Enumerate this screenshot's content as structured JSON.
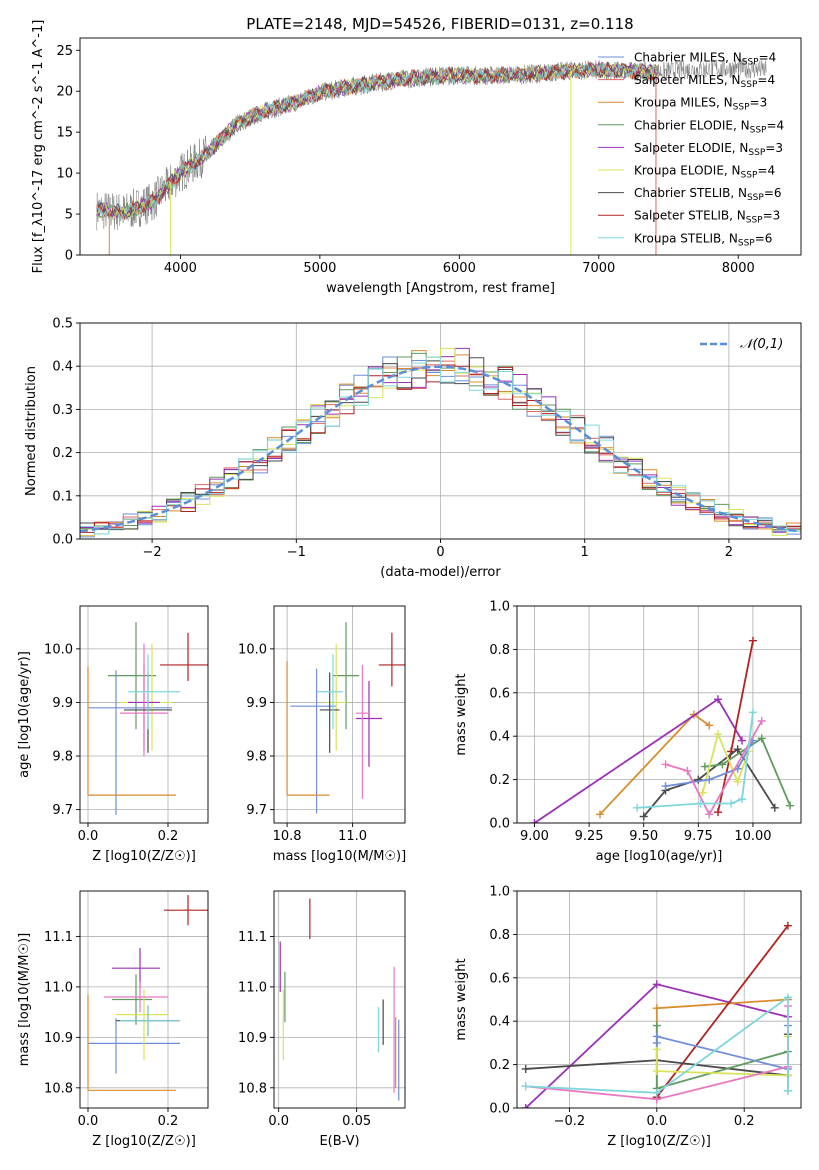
{
  "chart_data": [
    {
      "id": "spectrum",
      "type": "line",
      "title": "PLATE=2148, MJD=54526, FIBERID=0131, z=0.118",
      "xlabel": "wavelength [Angstrom, rest frame]",
      "ylabel": "Flux [f_λ10^-17 erg cm^-2 s^-1 A^-1]",
      "xlim": [
        3280,
        8450
      ],
      "ylim": [
        0,
        26.5
      ],
      "xticks": [
        4000,
        5000,
        6000,
        7000,
        8000
      ],
      "yticks": [
        0,
        5,
        10,
        15,
        20,
        25
      ],
      "grid": false,
      "legend_position": "top-right",
      "continuum": {
        "x": [
          3400,
          3600,
          3800,
          4000,
          4200,
          4400,
          4600,
          4800,
          5000,
          5200,
          5400,
          5600,
          5800,
          6000,
          6200,
          6400,
          6600,
          6800,
          7000,
          7200,
          7400,
          7600,
          7800,
          8000,
          8200
        ],
        "y": [
          5.5,
          5.2,
          6.5,
          10.0,
          12.5,
          16.0,
          17.5,
          18.5,
          19.8,
          20.5,
          21.0,
          21.5,
          21.8,
          22.0,
          21.9,
          22.0,
          22.2,
          22.5,
          22.6,
          22.5,
          22.3,
          22.6,
          22.7,
          22.8,
          22.6
        ]
      },
      "series": [
        {
          "name": "Chabrier MILES, N_SSP=4",
          "color": "#6f8fd8"
        },
        {
          "name": "Salpeter MILES, N_SSP=4",
          "color": "#e06767"
        },
        {
          "name": "Kroupa MILES, N_SSP=3",
          "color": "#d98c2e"
        },
        {
          "name": "Chabrier ELODIE, N_SSP=4",
          "color": "#5f9a5f"
        },
        {
          "name": "Salpeter ELODIE, N_SSP=3",
          "color": "#9b30b8"
        },
        {
          "name": "Kroupa ELODIE, N_SSP=4",
          "color": "#d9e35a"
        },
        {
          "name": "Chabrier STELIB, N_SSP=6",
          "color": "#4a4a4a"
        },
        {
          "name": "Salpeter STELIB, N_SSP=3",
          "color": "#b22222"
        },
        {
          "name": "Kroupa STELIB, N_SSP=6",
          "color": "#7fd6dd"
        }
      ]
    },
    {
      "id": "residuals",
      "type": "line",
      "title": "",
      "xlabel": "(data-model)/error",
      "ylabel": "Normed distribution",
      "xlim": [
        -2.5,
        2.5
      ],
      "ylim": [
        0,
        0.5
      ],
      "xticks": [
        -2,
        -1,
        0,
        1,
        2
      ],
      "yticks": [
        0.0,
        0.1,
        0.2,
        0.3,
        0.4,
        0.5
      ],
      "grid": true,
      "legend_position": "top-right",
      "reference": {
        "name": "𝒩(0,1)",
        "color": "#5b8fd9",
        "mu": 0,
        "sigma": 1
      },
      "bin_width": 0.1
    },
    {
      "id": "age-vs-Z",
      "type": "scatter",
      "title": "",
      "xlabel": "Z [log10(Z/Z☉)]",
      "ylabel": "age [log10(age/yr)]",
      "xlim": [
        -0.02,
        0.3
      ],
      "ylim": [
        9.675,
        10.08
      ],
      "xticks": [
        0.0,
        0.2
      ],
      "yticks": [
        9.7,
        9.8,
        9.9,
        10.0
      ],
      "grid": true,
      "points": [
        {
          "x": 0.12,
          "y": 9.95,
          "xerr": [
            0.07,
            0.05
          ],
          "yerr": [
            0.1,
            0.1
          ],
          "color": "#5f9a5f"
        },
        {
          "x": 0.07,
          "y": 9.89,
          "xerr": [
            0.07,
            0.14
          ],
          "yerr": [
            0.2,
            0.07
          ],
          "color": "#6f8fd8"
        },
        {
          "x": 0.16,
          "y": 9.9,
          "xerr": [
            0.08,
            0.05
          ],
          "yerr": [
            0.09,
            0.11
          ],
          "color": "#d9e35a"
        },
        {
          "x": 0.14,
          "y": 9.9,
          "xerr": [
            0.04,
            0.04
          ],
          "yerr": [
            0.09,
            0.07
          ],
          "color": "#9b30b8"
        },
        {
          "x": 0.14,
          "y": 9.88,
          "xerr": [
            0.06,
            0.06
          ],
          "yerr": [
            0.08,
            0.13
          ],
          "color": "#e879c0"
        },
        {
          "x": 0.15,
          "y": 9.886,
          "xerr": [
            0.06,
            0.06
          ],
          "yerr": [
            0.08,
            0.07
          ],
          "color": "#4a4a4a"
        },
        {
          "x": 0.15,
          "y": 9.92,
          "xerr": [
            0.05,
            0.08
          ],
          "yerr": [
            0.07,
            0.07
          ],
          "color": "#7fd6dd"
        },
        {
          "x": 0.25,
          "y": 9.97,
          "xerr": [
            0.07,
            0.05
          ],
          "yerr": [
            0.03,
            0.06
          ],
          "color": "#b22222"
        },
        {
          "x": 0.0,
          "y": 9.727,
          "xerr": [
            0.0,
            0.22
          ],
          "yerr": [
            0.0,
            0.24
          ],
          "color": "#d98c2e"
        }
      ]
    },
    {
      "id": "age-vs-mass",
      "type": "scatter",
      "title": "",
      "xlabel": "mass [log10(M/M☉)]",
      "ylabel": "",
      "xlim": [
        10.76,
        11.16
      ],
      "ylim": [
        9.675,
        10.08
      ],
      "xticks": [
        10.8,
        11.0
      ],
      "yticks": [
        9.7,
        9.8,
        9.9,
        10.0
      ],
      "grid": true,
      "points": [
        {
          "x": 10.98,
          "y": 9.95,
          "xerr": [
            0.04,
            0.04
          ],
          "yerr": [
            0.1,
            0.1
          ],
          "color": "#5f9a5f"
        },
        {
          "x": 10.89,
          "y": 9.893,
          "xerr": [
            0.08,
            0.06
          ],
          "yerr": [
            0.2,
            0.07
          ],
          "color": "#6f8fd8"
        },
        {
          "x": 10.95,
          "y": 9.9,
          "xerr": [
            0.03,
            0.03
          ],
          "yerr": [
            0.09,
            0.11
          ],
          "color": "#d9e35a"
        },
        {
          "x": 11.05,
          "y": 9.87,
          "xerr": [
            0.04,
            0.04
          ],
          "yerr": [
            0.09,
            0.07
          ],
          "color": "#9b30b8"
        },
        {
          "x": 11.03,
          "y": 9.88,
          "xerr": [
            0.02,
            0.02
          ],
          "yerr": [
            0.16,
            0.09
          ],
          "color": "#e879c0"
        },
        {
          "x": 10.93,
          "y": 9.886,
          "xerr": [
            0.03,
            0.03
          ],
          "yerr": [
            0.08,
            0.07
          ],
          "color": "#4a4a4a"
        },
        {
          "x": 10.94,
          "y": 9.92,
          "xerr": [
            0.05,
            0.03
          ],
          "yerr": [
            0.07,
            0.07
          ],
          "color": "#7fd6dd"
        },
        {
          "x": 11.12,
          "y": 9.97,
          "xerr": [
            0.04,
            0.04
          ],
          "yerr": [
            0.04,
            0.06
          ],
          "color": "#b22222"
        },
        {
          "x": 10.8,
          "y": 9.727,
          "xerr": [
            0.0,
            0.13
          ],
          "yerr": [
            0.0,
            0.25
          ],
          "color": "#d98c2e"
        }
      ]
    },
    {
      "id": "mass-weight-vs-age",
      "type": "line",
      "title": "",
      "xlabel": "age [log10(age/yr)]",
      "ylabel": "mass weight",
      "xlim": [
        8.92,
        10.22
      ],
      "ylim": [
        0,
        1
      ],
      "xticks": [
        9.0,
        9.25,
        9.5,
        9.75,
        10.0
      ],
      "yticks": [
        0.0,
        0.2,
        0.4,
        0.6,
        0.8,
        1.0
      ],
      "grid": true,
      "series": [
        {
          "color": "#d98c2e",
          "x": [
            9.3,
            9.73,
            9.8
          ],
          "y": [
            0.04,
            0.5,
            0.45
          ]
        },
        {
          "color": "#9b30b8",
          "x": [
            9.0,
            9.84,
            9.95
          ],
          "y": [
            0.0,
            0.57,
            0.38
          ]
        },
        {
          "color": "#b22222",
          "x": [
            9.84,
            9.9,
            10.0
          ],
          "y": [
            0.05,
            0.33,
            0.84
          ]
        },
        {
          "color": "#4a4a4a",
          "x": [
            9.5,
            9.6,
            9.75,
            9.93,
            10.1
          ],
          "y": [
            0.03,
            0.15,
            0.2,
            0.34,
            0.07
          ]
        },
        {
          "color": "#5f9a5f",
          "x": [
            9.78,
            9.86,
            10.04,
            10.17
          ],
          "y": [
            0.26,
            0.27,
            0.39,
            0.08
          ]
        },
        {
          "color": "#d9e35a",
          "x": [
            9.77,
            9.84,
            9.93,
            9.98
          ],
          "y": [
            0.14,
            0.41,
            0.19,
            0.33
          ]
        },
        {
          "color": "#6f8fd8",
          "x": [
            9.6,
            9.8,
            9.93,
            10.0
          ],
          "y": [
            0.17,
            0.2,
            0.25,
            0.38
          ]
        },
        {
          "color": "#e879c0",
          "x": [
            9.6,
            9.7,
            9.8,
            10.04
          ],
          "y": [
            0.27,
            0.24,
            0.04,
            0.47
          ]
        },
        {
          "color": "#7fd6dd",
          "x": [
            9.47,
            9.76,
            9.9,
            9.95,
            10.0
          ],
          "y": [
            0.07,
            0.09,
            0.09,
            0.11,
            0.51
          ]
        }
      ]
    },
    {
      "id": "mass-vs-Z",
      "type": "scatter",
      "title": "",
      "xlabel": "Z [log10(Z/Z☉)]",
      "ylabel": "mass [log10(M/M☉)]",
      "xlim": [
        -0.02,
        0.3
      ],
      "ylim": [
        10.76,
        11.19
      ],
      "xticks": [
        0.0,
        0.2
      ],
      "yticks": [
        10.8,
        10.9,
        11.0,
        11.1
      ],
      "grid": true,
      "points": [
        {
          "x": 0.12,
          "y": 10.975,
          "xerr": [
            0.06,
            0.04
          ],
          "yerr": [
            0.05,
            0.05
          ],
          "color": "#5f9a5f"
        },
        {
          "x": 0.07,
          "y": 10.888,
          "xerr": [
            0.07,
            0.16
          ],
          "yerr": [
            0.06,
            0.05
          ],
          "color": "#6f8fd8"
        },
        {
          "x": 0.14,
          "y": 10.945,
          "xerr": [
            0.07,
            0.06
          ],
          "yerr": [
            0.09,
            0.05
          ],
          "color": "#d9e35a"
        },
        {
          "x": 0.13,
          "y": 11.037,
          "xerr": [
            0.07,
            0.05
          ],
          "yerr": [
            0.04,
            0.04
          ],
          "color": "#9b30b8"
        },
        {
          "x": 0.13,
          "y": 10.98,
          "xerr": [
            0.09,
            0.07
          ],
          "yerr": [
            0.03,
            0.03
          ],
          "color": "#e879c0"
        },
        {
          "x": 0.15,
          "y": 10.933,
          "xerr": [
            0.08,
            0.08
          ],
          "yerr": [
            0.03,
            0.03
          ],
          "color": "#4a4a4a"
        },
        {
          "x": 0.15,
          "y": 10.933,
          "xerr": [
            0.07,
            0.08
          ],
          "yerr": [
            0.03,
            0.03
          ],
          "color": "#7fd6dd"
        },
        {
          "x": 0.25,
          "y": 11.152,
          "xerr": [
            0.06,
            0.05
          ],
          "yerr": [
            0.03,
            0.03
          ],
          "color": "#b22222"
        },
        {
          "x": 0.0,
          "y": 10.795,
          "xerr": [
            0.0,
            0.22
          ],
          "yerr": [
            0.0,
            0.19
          ],
          "color": "#d98c2e"
        }
      ]
    },
    {
      "id": "mass-vs-EBV",
      "type": "scatter",
      "title": "",
      "xlabel": "E(B-V)",
      "ylabel": "",
      "xlim": [
        -0.003,
        0.081
      ],
      "ylim": [
        10.76,
        11.19
      ],
      "xticks": [
        0.0,
        0.05
      ],
      "yticks": [
        10.8,
        10.9,
        11.0,
        11.1
      ],
      "grid": true,
      "points": [
        {
          "x": 0.001,
          "y": 11.04,
          "xerr": [
            0,
            0
          ],
          "yerr": [
            0.05,
            0.05
          ],
          "color": "#9b30b8"
        },
        {
          "x": 0.003,
          "y": 10.945,
          "xerr": [
            0,
            0
          ],
          "yerr": [
            0.09,
            0.05
          ],
          "color": "#d9e35a"
        },
        {
          "x": 0.004,
          "y": 10.98,
          "xerr": [
            0,
            0
          ],
          "yerr": [
            0.05,
            0.05
          ],
          "color": "#5f9a5f"
        },
        {
          "x": 0.02,
          "y": 11.135,
          "xerr": [
            0,
            0
          ],
          "yerr": [
            0.04,
            0.04
          ],
          "color": "#b22222"
        },
        {
          "x": 0.064,
          "y": 10.915,
          "xerr": [
            0,
            0
          ],
          "yerr": [
            0.045,
            0.045
          ],
          "color": "#7fd6dd"
        },
        {
          "x": 0.067,
          "y": 10.93,
          "xerr": [
            0,
            0
          ],
          "yerr": [
            0.045,
            0.045
          ],
          "color": "#4a4a4a"
        },
        {
          "x": 0.074,
          "y": 10.94,
          "xerr": [
            0,
            0
          ],
          "yerr": [
            0.15,
            0.1
          ],
          "color": "#e879c0"
        },
        {
          "x": 0.075,
          "y": 10.88,
          "xerr": [
            0,
            0
          ],
          "yerr": [
            0.08,
            0.06
          ],
          "color": "#d98c2e"
        },
        {
          "x": 0.077,
          "y": 10.855,
          "xerr": [
            0,
            0
          ],
          "yerr": [
            0.08,
            0.08
          ],
          "color": "#6f8fd8"
        }
      ]
    },
    {
      "id": "mass-weight-vs-Z",
      "type": "line",
      "title": "",
      "xlabel": "Z [log10(Z/Z☉)]",
      "ylabel": "mass weight",
      "xlim": [
        -0.32,
        0.33
      ],
      "ylim": [
        0,
        1
      ],
      "xticks": [
        -0.2,
        0.0,
        0.2
      ],
      "yticks": [
        0.0,
        0.2,
        0.4,
        0.6,
        0.8,
        1.0
      ],
      "grid": true,
      "series": [
        {
          "color": "#9b30b8",
          "x": [
            -0.3,
            0.0,
            0.3
          ],
          "y": [
            0.0,
            0.57,
            0.42
          ]
        },
        {
          "color": "#d98c2e",
          "x": [
            0.0,
            0.0,
            0.3
          ],
          "y": [
            0.04,
            0.46,
            0.5
          ]
        },
        {
          "color": "#b22222",
          "x": [
            0.0,
            0.0,
            0.3
          ],
          "y": [
            0.05,
            0.05,
            0.84
          ]
        },
        {
          "color": "#4a4a4a",
          "x": [
            -0.3,
            0.0,
            0.3,
            0.3
          ],
          "y": [
            0.18,
            0.22,
            0.15,
            0.34
          ]
        },
        {
          "color": "#5f9a5f",
          "x": [
            0.0,
            0.0,
            0.3,
            0.3
          ],
          "y": [
            0.38,
            0.09,
            0.26,
            0.08
          ]
        },
        {
          "color": "#d9e35a",
          "x": [
            0.0,
            0.0,
            0.3,
            0.3
          ],
          "y": [
            0.27,
            0.17,
            0.15,
            0.33
          ]
        },
        {
          "color": "#6f8fd8",
          "x": [
            0.0,
            0.0,
            0.3,
            0.3
          ],
          "y": [
            0.3,
            0.33,
            0.18,
            0.38
          ]
        },
        {
          "color": "#e879c0",
          "x": [
            -0.3,
            0.0,
            0.3,
            0.3
          ],
          "y": [
            0.1,
            0.04,
            0.19,
            0.47
          ]
        },
        {
          "color": "#7fd6dd",
          "x": [
            -0.3,
            0.0,
            0.3,
            0.3
          ],
          "y": [
            0.1,
            0.07,
            0.51,
            0.08
          ]
        }
      ]
    }
  ]
}
